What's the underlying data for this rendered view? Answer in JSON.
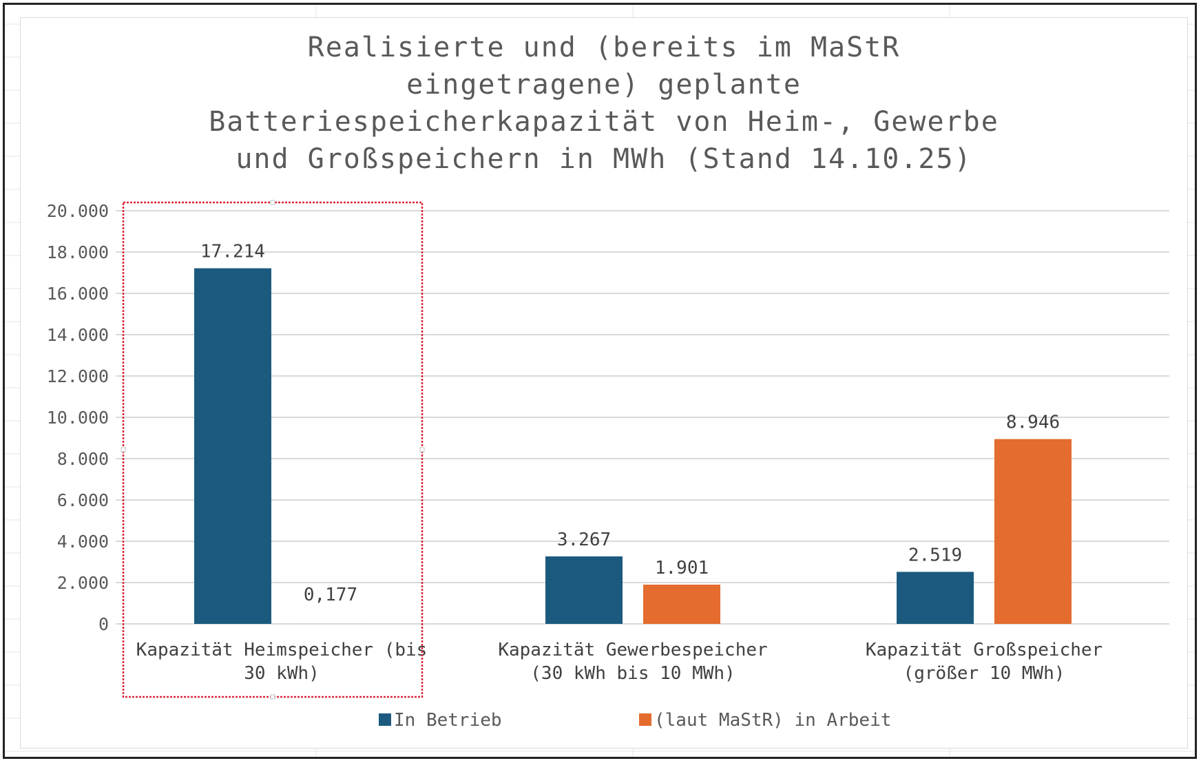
{
  "chart_data": {
    "type": "bar",
    "title_lines": [
      "Realisierte und (bereits im MaStR",
      "eingetragene) geplante",
      "Batteriespeicherkapazität von Heim-, Gewerbe",
      "und Großspeichern in MWh (Stand 14.10.25)"
    ],
    "categories": [
      {
        "line1": "Kapazität Heimspeicher (bis",
        "line2": "30 kWh)"
      },
      {
        "line1": "Kapazität Gewerbespeicher",
        "line2": "(30 kWh bis 10 MWh)"
      },
      {
        "line1": "Kapazität Großspeicher",
        "line2": "(größer 10 MWh)"
      }
    ],
    "series": [
      {
        "name": "In Betrieb",
        "color": "#1b5a7e",
        "values": [
          17214,
          3267,
          2519
        ],
        "labels": [
          "17.214",
          "3.267",
          "2.519"
        ]
      },
      {
        "name": "(laut MaStR) in Arbeit",
        "color": "#e46c2e",
        "values": [
          0.177,
          1901,
          8946
        ],
        "labels": [
          "0,177",
          "1.901",
          "8.946"
        ]
      }
    ],
    "ylim": [
      0,
      20000
    ],
    "yticks": [
      0,
      2000,
      4000,
      6000,
      8000,
      10000,
      12000,
      14000,
      16000,
      18000,
      20000
    ],
    "ytick_labels": [
      "0",
      "2.000",
      "4.000",
      "6.000",
      "8.000",
      "10.000",
      "12.000",
      "14.000",
      "16.000",
      "18.000",
      "20.000"
    ],
    "legend_position": "bottom",
    "grid": true
  }
}
